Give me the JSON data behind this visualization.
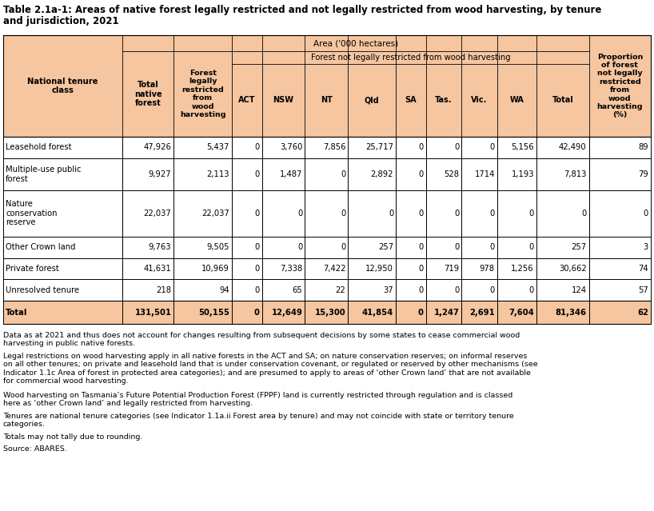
{
  "title_line1": "Table 2.1a-1: Areas of native forest legally restricted and not legally restricted from wood harvesting, by tenure",
  "title_line2": "and jurisdiction, 2021",
  "header_bg": "#F5C6A0",
  "white": "#FFFFFF",
  "area_header": "Area ('000 hectares)",
  "sub_header": "Forest not legally restricted from wood harvesting",
  "col_labels": [
    "National tenure\nclass",
    "Total\nnative\nforest",
    "Forest\nlegally\nrestricted\nfrom\nwood\nharvesting",
    "ACT",
    "NSW",
    "NT",
    "Qld",
    "SA",
    "Tas.",
    "Vic.",
    "WA",
    "Total",
    "Proportion\nof forest\nnot legally\nrestricted\nfrom\nwood\nharvesting\n(%)"
  ],
  "rows": [
    [
      "Leasehold forest",
      "47,926",
      "5,437",
      "0",
      "3,760",
      "7,856",
      "25,717",
      "0",
      "0",
      "0",
      "5,156",
      "42,490",
      "89"
    ],
    [
      "Multiple-use public\nforest",
      "9,927",
      "2,113",
      "0",
      "1,487",
      "0",
      "2,892",
      "0",
      "528",
      "1714",
      "1,193",
      "7,813",
      "79"
    ],
    [
      "Nature\nconservation\nreserve",
      "22,037",
      "22,037",
      "0",
      "0",
      "0",
      "0",
      "0",
      "0",
      "0",
      "0",
      "0",
      "0"
    ],
    [
      "Other Crown land",
      "9,763",
      "9,505",
      "0",
      "0",
      "0",
      "257",
      "0",
      "0",
      "0",
      "0",
      "257",
      "3"
    ],
    [
      "Private forest",
      "41,631",
      "10,969",
      "0",
      "7,338",
      "7,422",
      "12,950",
      "0",
      "719",
      "978",
      "1,256",
      "30,662",
      "74"
    ],
    [
      "Unresolved tenure",
      "218",
      "94",
      "0",
      "65",
      "22",
      "37",
      "0",
      "0",
      "0",
      "0",
      "124",
      "57"
    ]
  ],
  "total_row": [
    "Total",
    "131,501",
    "50,155",
    "0",
    "12,649",
    "15,300",
    "41,854",
    "0",
    "1,247",
    "2,691",
    "7,604",
    "81,346",
    "62"
  ],
  "footnotes": [
    "Data as at 2021 and thus does not account for changes resulting from subsequent decisions by some states to cease commercial wood\nharvesting in public native forests.",
    "Legal restrictions on wood harvesting apply in all native forests in the ACT and SA; on nature conservation reserves; on informal reserves\non all other tenures; on private and leasehold land that is under conservation covenant, or regulated or reserved by other mechanisms (see\nIndicator 1.1c Area of forest in protected area categories); and are presumed to apply to areas of ‘other Crown land’ that are not available\nfor commercial wood harvesting.",
    "Wood harvesting on Tasmania’s Future Potential Production Forest (FPPF) land is currently restricted through regulation and is classed\nhere as ‘other Crown land’ and legally restricted from harvesting.",
    "Tenures are national tenure categories (see Indicator 1.1a.ii Forest area by tenure) and may not coincide with state or territory tenure\ncategories.",
    "Totals may not tally due to rounding.",
    "Source: ABARES."
  ]
}
